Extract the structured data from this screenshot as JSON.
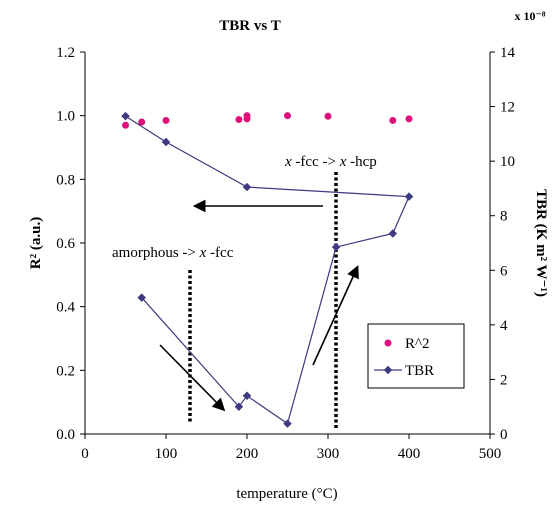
{
  "chart_data": {
    "type": "line",
    "title": "TBR vs T",
    "xlabel": "temperature (°C)",
    "ylabel_left": "R² (a.u.)",
    "ylabel_right": "TBR (K m² W⁻¹)",
    "right_axis_multiplier": "x 10⁻⁸",
    "xlim": [
      0,
      500
    ],
    "ylim_left": [
      0,
      1.2
    ],
    "ylim_right": [
      0,
      14
    ],
    "x_ticks": [
      "0",
      "100",
      "200",
      "300",
      "400",
      "500"
    ],
    "y_left_ticks": [
      "0.0",
      "0.2",
      "0.4",
      "0.6",
      "0.8",
      "1.0",
      "1.2"
    ],
    "y_right_ticks": [
      "0",
      "2",
      "4",
      "6",
      "8",
      "10",
      "12",
      "14"
    ],
    "grid": false,
    "legend_position": "right-middle",
    "series": [
      {
        "name": "R^2",
        "axis": "left",
        "style": "markers",
        "color": "#e0107a",
        "x": [
          50,
          70,
          100,
          190,
          200,
          200,
          250,
          300,
          380,
          400
        ],
        "y": [
          0.97,
          0.98,
          0.985,
          0.988,
          0.99,
          1.0,
          1.0,
          0.998,
          0.985,
          0.99
        ]
      },
      {
        "name": "TBR",
        "axis": "right",
        "style": "line-markers",
        "color": "#3d3a80",
        "x": [
          50,
          100,
          200,
          400,
          380,
          310,
          250,
          200,
          190,
          70
        ],
        "y": [
          11.65,
          10.7,
          9.05,
          8.7,
          7.35,
          6.85,
          0.38,
          1.4,
          1.0,
          5.0
        ]
      }
    ],
    "annotations": [
      {
        "text_prefix": "amorphous -> ",
        "italic": "x",
        "text_suffix": " -fcc",
        "divider_x": 130
      },
      {
        "italic_1": "x",
        "mid": " -fcc -> ",
        "italic_2": "x",
        "end": " -hcp",
        "divider_x": 310
      }
    ]
  },
  "colors": {
    "r2": "#e0107a",
    "tbr": "#3d3a80",
    "axis": "#000000"
  }
}
